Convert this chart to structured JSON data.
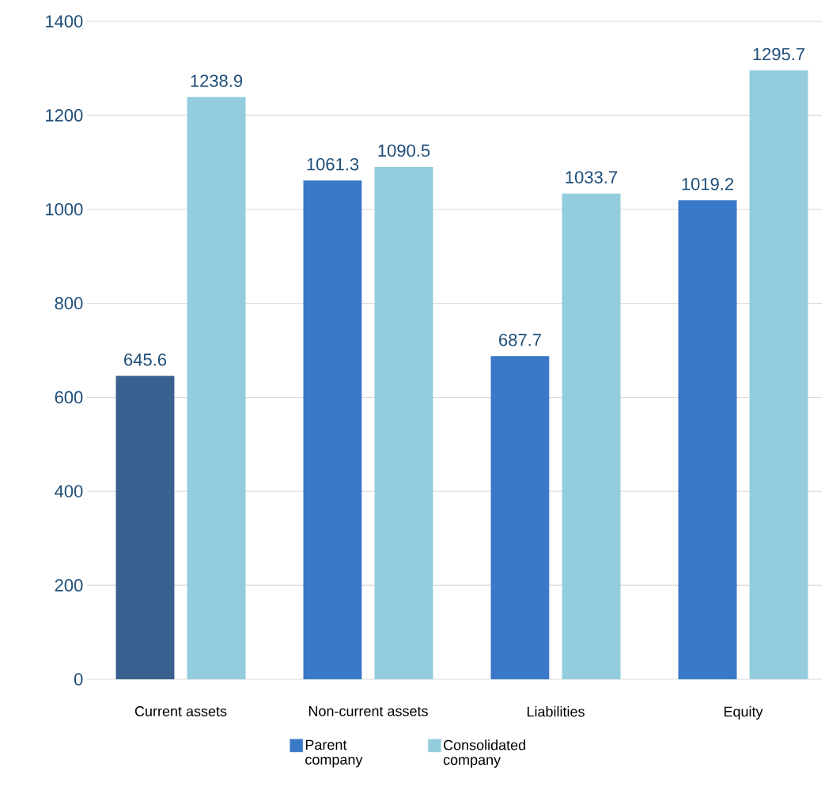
{
  "chart_data": {
    "type": "bar",
    "categories": [
      "Current assets",
      "Non-current assets",
      "Liabilities",
      "Equity"
    ],
    "series": [
      {
        "name": "Parent company",
        "color": "#3a78c8",
        "colors": [
          "#38618f",
          "#3a78c8",
          "#3a78c8",
          "#3a78c8"
        ],
        "values": [
          645.6,
          1061.3,
          687.7,
          1019.2
        ]
      },
      {
        "name": "Consolidated company",
        "color": "#93cddd",
        "values": [
          1238.9,
          1090.5,
          1033.7,
          1295.7
        ]
      }
    ],
    "ylim": [
      0,
      1400
    ],
    "yticks": [
      0,
      200,
      400,
      600,
      800,
      1000,
      1200,
      1400
    ],
    "grid": "y",
    "legend": "bottom",
    "data_labels": true
  }
}
